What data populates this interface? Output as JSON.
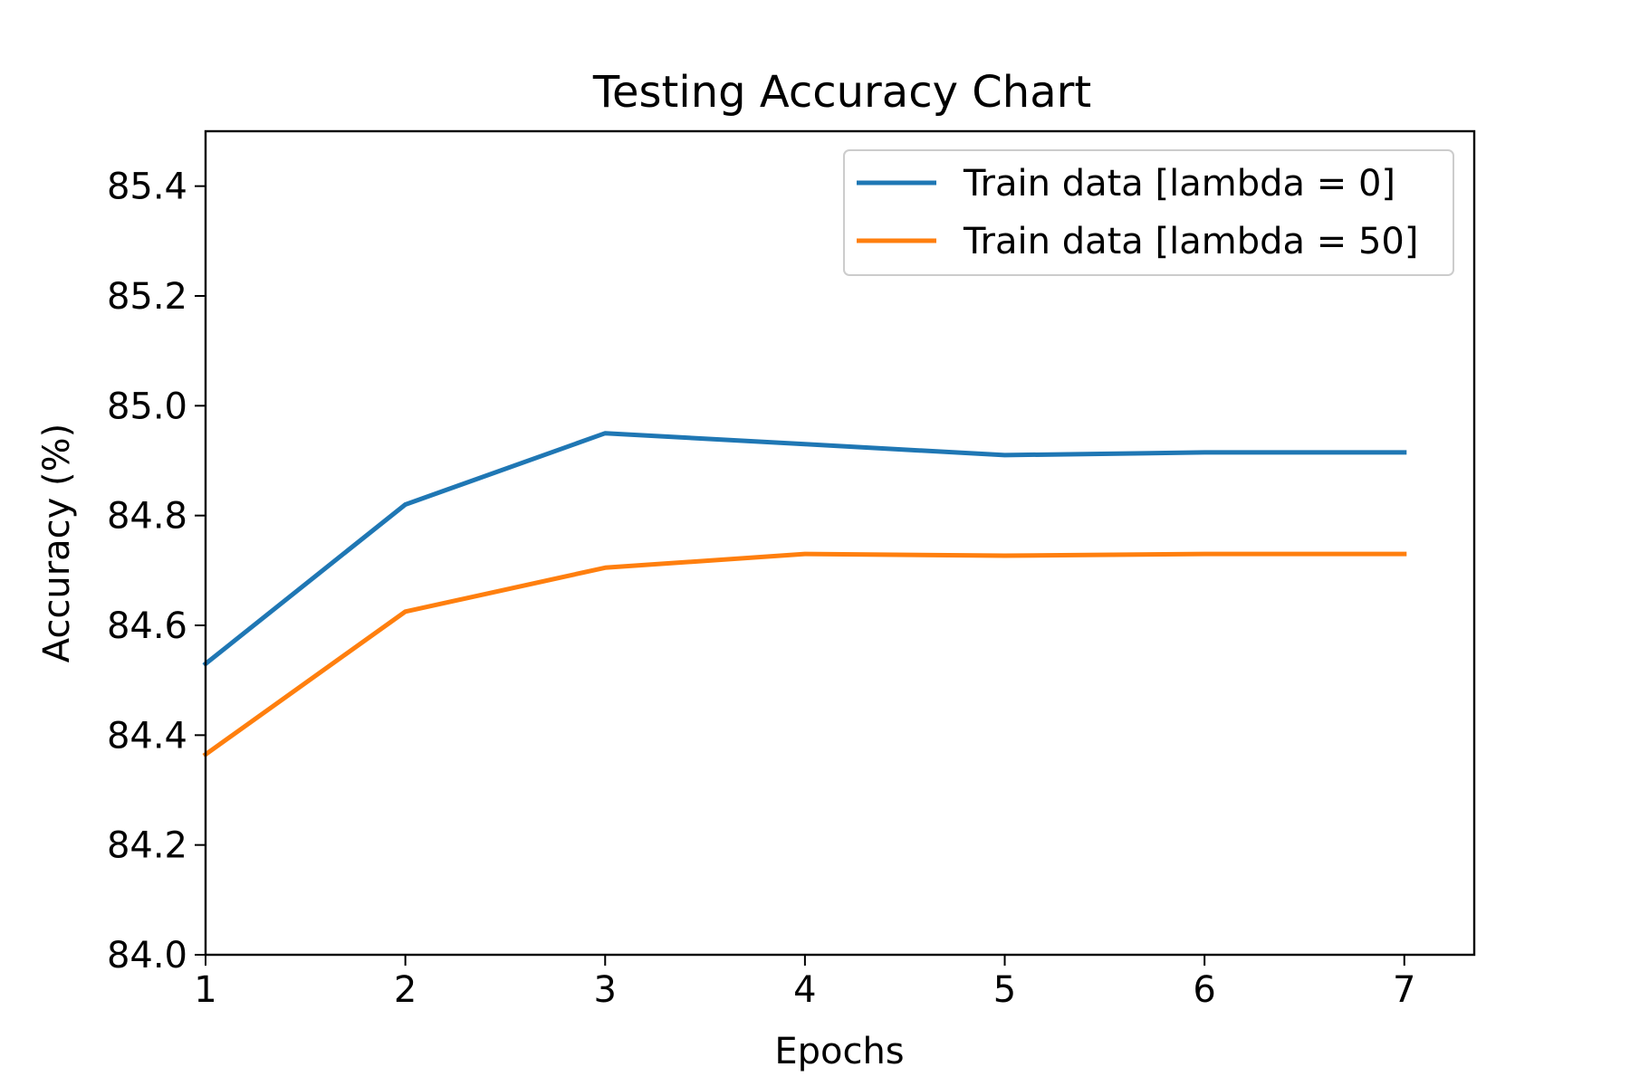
{
  "chart_data": {
    "type": "line",
    "title": "Testing Accuracy Chart",
    "xlabel": "Epochs",
    "ylabel": "Accuracy (%)",
    "x": [
      1,
      2,
      3,
      4,
      5,
      6,
      7
    ],
    "xlim": [
      1,
      7.35
    ],
    "ylim": [
      84.0,
      85.5
    ],
    "xticks": [
      "1",
      "2",
      "3",
      "4",
      "5",
      "6",
      "7"
    ],
    "yticks": [
      "84.0",
      "84.2",
      "84.4",
      "84.6",
      "84.8",
      "85.0",
      "85.2",
      "85.4"
    ],
    "grid": false,
    "legend_position": "top-right",
    "series": [
      {
        "name": "Train data [lambda = 0]",
        "color": "#1f77b4",
        "values": [
          84.53,
          84.82,
          84.95,
          84.93,
          84.91,
          84.915,
          84.915
        ]
      },
      {
        "name": "Train data [lambda = 50]",
        "color": "#ff7f0e",
        "values": [
          84.365,
          84.625,
          84.705,
          84.73,
          84.727,
          84.73,
          84.73
        ]
      }
    ]
  }
}
